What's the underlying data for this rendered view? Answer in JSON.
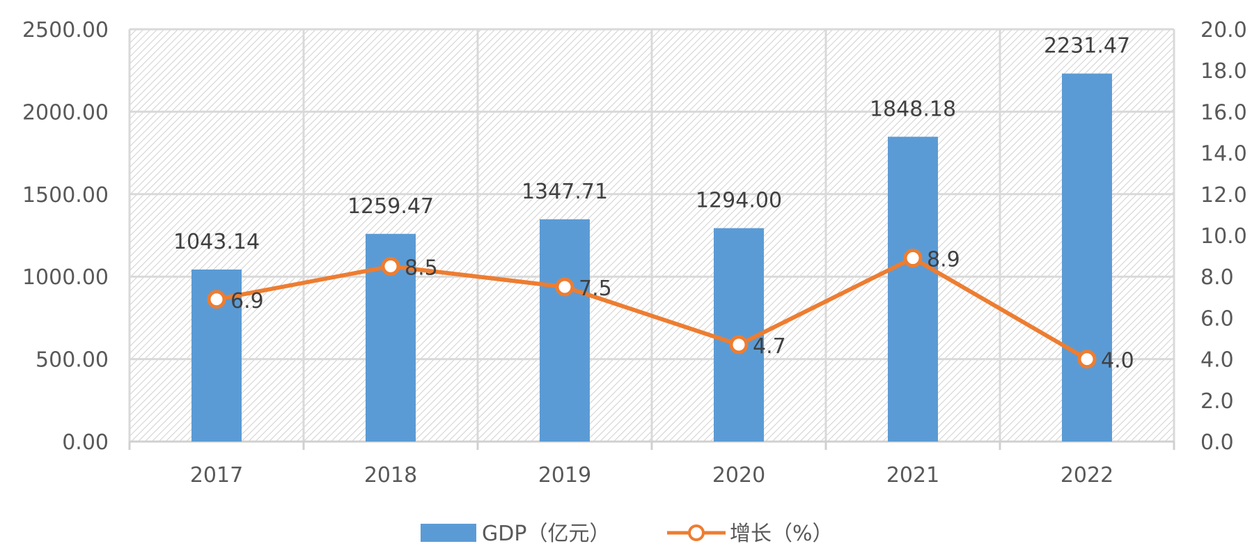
{
  "chart_data": {
    "type": "bar",
    "categories": [
      "2017",
      "2018",
      "2019",
      "2020",
      "2021",
      "2022"
    ],
    "series": [
      {
        "name": "GDP（亿元）",
        "type": "bar",
        "axis": "left",
        "color": "#5B9BD5",
        "values": [
          1043.14,
          1259.47,
          1347.71,
          1294.0,
          1848.18,
          2231.47
        ],
        "labels": [
          "1043.14",
          "1259.47",
          "1347.71",
          "1294.00",
          "1848.18",
          "2231.47"
        ]
      },
      {
        "name": "增长（%）",
        "type": "line",
        "axis": "right",
        "color": "#ED7D31",
        "values": [
          6.9,
          8.5,
          7.5,
          4.7,
          8.9,
          4.0
        ],
        "labels": [
          "6.9",
          "8.5",
          "7.5",
          "4.7",
          "8.9",
          "4.0"
        ]
      }
    ],
    "y_left": {
      "ylim": [
        0,
        2500
      ],
      "ticks": [
        "0.00",
        "500.00",
        "1000.00",
        "1500.00",
        "2000.00",
        "2500.00"
      ]
    },
    "y_right": {
      "ylim": [
        0,
        20
      ],
      "ticks": [
        "0.0",
        "2.0",
        "4.0",
        "6.0",
        "8.0",
        "10.0",
        "12.0",
        "14.0",
        "16.0",
        "18.0",
        "20.0"
      ]
    },
    "grid": true,
    "legend": "bottom-center",
    "plot_background": "diagonal-hatch"
  }
}
